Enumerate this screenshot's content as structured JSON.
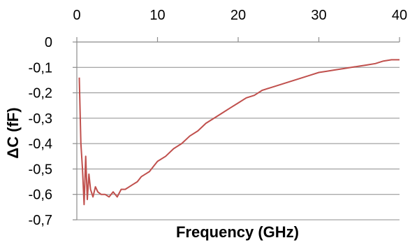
{
  "chart_data": {
    "type": "line",
    "title": "",
    "xlabel": "Frequency (GHz)",
    "ylabel": "ΔC (fF)",
    "x_axis_position": "top",
    "xlim": [
      0,
      40
    ],
    "ylim": [
      -0.7,
      0
    ],
    "xticks": [
      0,
      10,
      20,
      30,
      40
    ],
    "yticks": [
      0,
      -0.1,
      -0.2,
      -0.3,
      -0.4,
      -0.5,
      -0.6,
      -0.7
    ],
    "xtick_labels": [
      "0",
      "10",
      "20",
      "30",
      "40"
    ],
    "ytick_labels": [
      "0",
      "-0,1",
      "-0,2",
      "-0,3",
      "-0,4",
      "-0,5",
      "-0,6",
      "-0,7"
    ],
    "grid": "horizontal",
    "legend": "none",
    "series_color": "#c0504d",
    "series": [
      {
        "name": "",
        "x": [
          0.3,
          0.5,
          0.7,
          0.9,
          1.1,
          1.3,
          1.5,
          1.7,
          2.0,
          2.3,
          2.6,
          3.0,
          3.5,
          4.0,
          4.5,
          5.0,
          5.5,
          6.0,
          6.5,
          7.0,
          7.5,
          8.0,
          8.5,
          9.0,
          9.5,
          10.0,
          11.0,
          12.0,
          13.0,
          14.0,
          15.0,
          16.0,
          17.0,
          18.0,
          19.0,
          20.0,
          21.0,
          22.0,
          23.0,
          24.0,
          25.0,
          26.0,
          27.0,
          28.0,
          29.0,
          30.0,
          31.0,
          32.0,
          33.0,
          34.0,
          35.0,
          36.0,
          37.0,
          38.0,
          39.0,
          40.0
        ],
        "y": [
          -0.14,
          -0.4,
          -0.5,
          -0.64,
          -0.45,
          -0.62,
          -0.52,
          -0.58,
          -0.61,
          -0.57,
          -0.59,
          -0.6,
          -0.6,
          -0.61,
          -0.59,
          -0.61,
          -0.58,
          -0.58,
          -0.57,
          -0.56,
          -0.55,
          -0.53,
          -0.52,
          -0.51,
          -0.49,
          -0.47,
          -0.45,
          -0.42,
          -0.4,
          -0.37,
          -0.35,
          -0.32,
          -0.3,
          -0.28,
          -0.26,
          -0.24,
          -0.22,
          -0.21,
          -0.19,
          -0.18,
          -0.17,
          -0.16,
          -0.15,
          -0.14,
          -0.13,
          -0.12,
          -0.115,
          -0.11,
          -0.105,
          -0.1,
          -0.095,
          -0.09,
          -0.085,
          -0.075,
          -0.07,
          -0.07
        ]
      }
    ]
  }
}
